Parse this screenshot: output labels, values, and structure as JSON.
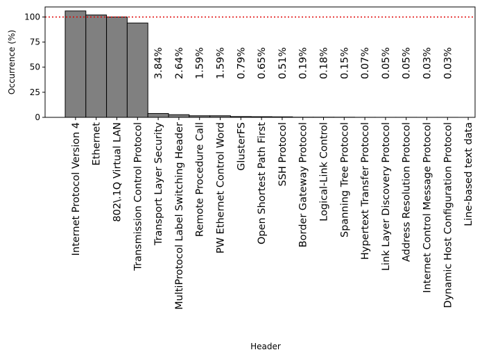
{
  "chart_data": {
    "type": "bar",
    "xlabel": "Header",
    "ylabel": "Occurrence (%)",
    "ylim": [
      0,
      110
    ],
    "yticks": [
      0,
      25,
      50,
      75,
      100
    ],
    "reference_line": {
      "value": 100,
      "color": "#e00000",
      "style": "dotted"
    },
    "bar_color": "#808080",
    "bar_edge_color": "#000000",
    "categories": [
      "Internet Protocol Version 4",
      "Ethernet",
      "802\\.1Q Virtual LAN",
      "Transmission Control Protocol",
      "Transport Layer Security",
      "MultiProtocol Label Switching Header",
      "Remote Procedure Call",
      "PW Ethernet Control Word",
      "GlusterFS",
      "Open Shortest Path First",
      "SSH Protocol",
      "Border Gateway Protocol",
      "Logical-Link Control",
      "Spanning Tree Protocol",
      "Hypertext Transfer Protocol",
      "Link Layer Discovery Protocol",
      "Address Resolution Protocol",
      "Internet Control Message Protocol",
      "Dynamic Host Configuration Protocol",
      "Line-based text data"
    ],
    "values": [
      106,
      102,
      100,
      94,
      3.84,
      2.64,
      1.59,
      1.59,
      0.79,
      0.65,
      0.51,
      0.19,
      0.18,
      0.15,
      0.07,
      0.05,
      0.05,
      0.03,
      0.03,
      0
    ],
    "data_labels": [
      "",
      "",
      "",
      "",
      "3.84%",
      "2.64%",
      "1.59%",
      "1.59%",
      "0.79%",
      "0.65%",
      "0.51%",
      "0.19%",
      "0.18%",
      "0.15%",
      "0.07%",
      "0.05%",
      "0.05%",
      "0.03%",
      "0.03%",
      ""
    ]
  }
}
